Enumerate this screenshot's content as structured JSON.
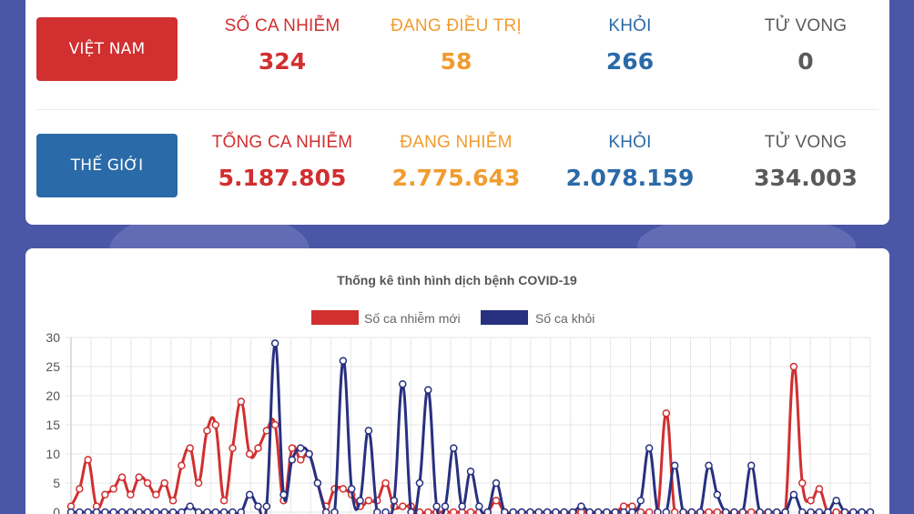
{
  "vietnam": {
    "button_label": "VIỆT NAM",
    "stats": [
      {
        "label": "SỐ CA NHIỄM",
        "value": "324"
      },
      {
        "label": "ĐANG ĐIỀU TRỊ",
        "value": "58"
      },
      {
        "label": "KHỎI",
        "value": "266"
      },
      {
        "label": "TỬ VONG",
        "value": "0"
      }
    ]
  },
  "world": {
    "button_label": "THẾ GIỚI",
    "stats": [
      {
        "label": "TỔNG CA NHIỄM",
        "value": "5.187.805"
      },
      {
        "label": "ĐANG NHIỄM",
        "value": "2.775.643"
      },
      {
        "label": "KHỎI",
        "value": "2.078.159"
      },
      {
        "label": "TỬ VONG",
        "value": "334.003"
      }
    ]
  },
  "colors": {
    "red": "#d12f30",
    "orange": "#f19c2f",
    "blue": "#2a6aa8",
    "gray": "#5a5a5a",
    "series_new": "#d12f30",
    "series_recovered": "#283080"
  },
  "chart_data": {
    "type": "line",
    "title": "Thống kê tình hình dịch bệnh COVID-19",
    "xlabel": "",
    "ylabel": "",
    "ylim": [
      0,
      30
    ],
    "yticks": [
      0,
      5,
      10,
      15,
      20,
      25,
      30
    ],
    "grid": true,
    "legend": "top-center",
    "series": [
      {
        "name": "Số ca nhiễm mới",
        "color": "#d12f30",
        "values": [
          1,
          4,
          9,
          1,
          3,
          4,
          6,
          3,
          6,
          5,
          3,
          5,
          2,
          8,
          11,
          5,
          14,
          15,
          2,
          11,
          19,
          10,
          11,
          14,
          15,
          2,
          11,
          9,
          10,
          5,
          1,
          4,
          4,
          3,
          1,
          2,
          2,
          5,
          1,
          1,
          1,
          0,
          0,
          0,
          0,
          0,
          0,
          0,
          0,
          0,
          2,
          0,
          0,
          0,
          0,
          0,
          0,
          0,
          0,
          0,
          0,
          0,
          0,
          0,
          0,
          1,
          1,
          0,
          0,
          0,
          17,
          0,
          0,
          0,
          0,
          0,
          0,
          0,
          0,
          0,
          0,
          0,
          0,
          0,
          0,
          25,
          5,
          2,
          4,
          0,
          0,
          0,
          0,
          0,
          0
        ]
      },
      {
        "name": "Số ca khỏi",
        "color": "#283080",
        "values": [
          0,
          0,
          0,
          0,
          0,
          0,
          0,
          0,
          0,
          0,
          0,
          0,
          0,
          0,
          1,
          0,
          0,
          0,
          0,
          0,
          0,
          3,
          1,
          1,
          29,
          3,
          9,
          11,
          10,
          5,
          0,
          0,
          26,
          4,
          2,
          14,
          0,
          0,
          2,
          22,
          0,
          5,
          21,
          1,
          1,
          11,
          1,
          7,
          1,
          0,
          5,
          0,
          0,
          0,
          0,
          0,
          0,
          0,
          0,
          0,
          1,
          0,
          0,
          0,
          0,
          0,
          0,
          2,
          11,
          0,
          0,
          8,
          0,
          0,
          0,
          8,
          3,
          0,
          0,
          0,
          8,
          0,
          0,
          0,
          0,
          3,
          0,
          0,
          0,
          0,
          2,
          0,
          0,
          0,
          0
        ]
      }
    ]
  }
}
